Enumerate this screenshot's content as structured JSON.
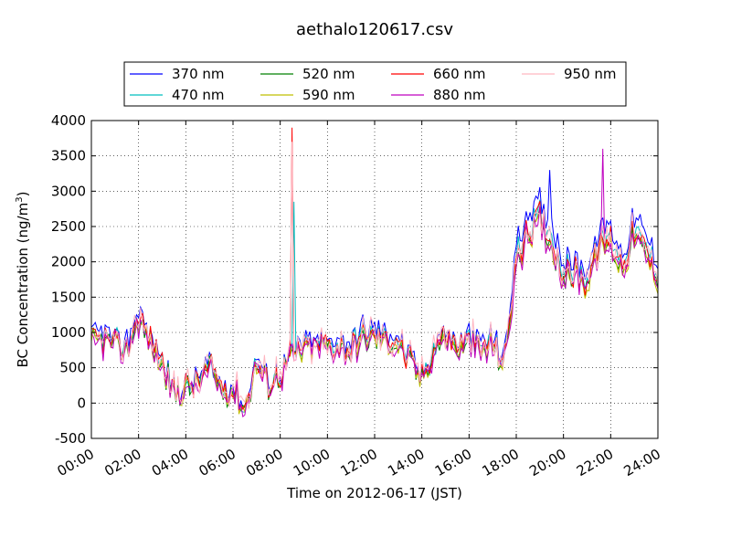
{
  "chart_data": {
    "type": "line",
    "title": "aethalo120617.csv",
    "xlabel": "Time on 2012-06-17 (JST)",
    "ylabel_main": "BC Concentration (ng/m",
    "ylabel_sup": "3",
    "ylabel_close": ")",
    "xlim": [
      0,
      24
    ],
    "ylim": [
      -500,
      4000
    ],
    "x_tick_labels": [
      "00:00",
      "02:00",
      "04:00",
      "06:00",
      "08:00",
      "10:00",
      "12:00",
      "14:00",
      "16:00",
      "18:00",
      "20:00",
      "22:00",
      "24:00"
    ],
    "y_tick_labels": [
      "-500",
      "0",
      "500",
      "1000",
      "1500",
      "2000",
      "2500",
      "3000",
      "3500",
      "4000"
    ],
    "grid": true,
    "legend_position": "top",
    "base_profile": {
      "x_hours": [
        0,
        0.5,
        1,
        1.5,
        2,
        2.5,
        3,
        3.5,
        4,
        4.5,
        5,
        5.5,
        6,
        6.5,
        7,
        7.5,
        8,
        8.5,
        9,
        9.5,
        10,
        10.5,
        11,
        11.5,
        12,
        12.5,
        13,
        13.5,
        14,
        14.5,
        15,
        15.5,
        16,
        16.5,
        17,
        17.5,
        18,
        18.5,
        19,
        19.5,
        20,
        20.5,
        21,
        21.5,
        22,
        22.5,
        23,
        23.5,
        24
      ],
      "y_values": [
        900,
        950,
        850,
        800,
        1250,
        900,
        600,
        150,
        250,
        300,
        550,
        250,
        200,
        -50,
        600,
        300,
        450,
        700,
        800,
        850,
        850,
        900,
        800,
        1000,
        1000,
        950,
        900,
        600,
        350,
        800,
        1000,
        800,
        900,
        800,
        900,
        600,
        2100,
        2500,
        2700,
        2400,
        1900,
        1900,
        1800,
        2300,
        2400,
        2000,
        2500,
        2200,
        1900
      ]
    },
    "series": [
      {
        "name": "370 nm",
        "color": "#0000ff",
        "scale": 1.06,
        "offset": 0,
        "amp": 80,
        "seed": 1
      },
      {
        "name": "470 nm",
        "color": "#00bfbf",
        "scale": 1.0,
        "offset": -20,
        "amp": 70,
        "seed": 2
      },
      {
        "name": "520 nm",
        "color": "#008000",
        "scale": 0.96,
        "offset": -30,
        "amp": 70,
        "seed": 3
      },
      {
        "name": "590 nm",
        "color": "#bfbf00",
        "scale": 0.94,
        "offset": -20,
        "amp": 70,
        "seed": 4
      },
      {
        "name": "660 nm",
        "color": "#ff0000",
        "scale": 0.97,
        "offset": 0,
        "amp": 90,
        "seed": 5
      },
      {
        "name": "880 nm",
        "color": "#bf00bf",
        "scale": 0.95,
        "offset": -40,
        "amp": 110,
        "seed": 6
      },
      {
        "name": "950 nm",
        "color": "#ffb6c1",
        "scale": 0.98,
        "offset": 20,
        "amp": 160,
        "seed": 7
      }
    ],
    "spikes": [
      {
        "x_hours": 8.5,
        "y": 3900,
        "series": "660 nm"
      },
      {
        "x_hours": 8.5,
        "y": 3700,
        "series": "950 nm"
      },
      {
        "x_hours": 8.6,
        "y": 2850,
        "series": "470 nm"
      },
      {
        "x_hours": 21.7,
        "y": 3600,
        "series": "880 nm"
      },
      {
        "x_hours": 19.4,
        "y": 3300,
        "series": "370 nm"
      }
    ]
  }
}
